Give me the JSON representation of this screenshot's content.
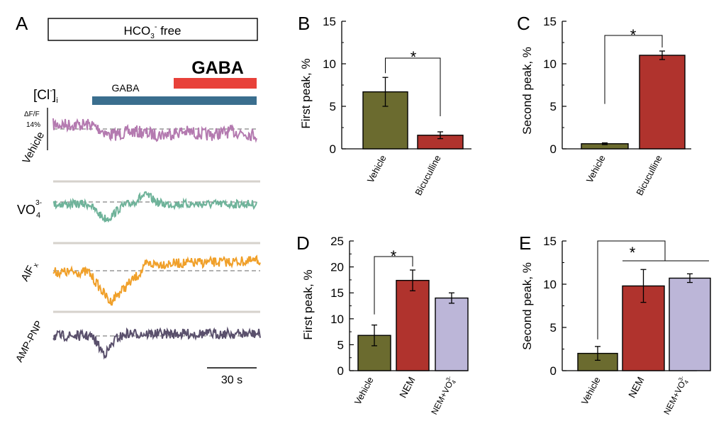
{
  "colors": {
    "vehicle": "#6b6b2f",
    "treated": "#b0332d",
    "nem_vo4": "#bcb6d8",
    "trace_vehicle": "#b47ab0",
    "trace_vo4": "#6fb39a",
    "trace_alf": "#f0a02a",
    "trace_amppnp": "#5a506c",
    "gaba_bar_blue": "#3a6e8e",
    "gaba_bar_red": "#e8413a",
    "separator": "#d6d2cc"
  },
  "panel_a": {
    "label": "A",
    "condition_box": {
      "main": "HCO",
      "sub": "3",
      "sup": "-",
      "rest": " free"
    },
    "gaba_large": "GABA",
    "gaba_small": "GABA",
    "cl_label": {
      "main": "[Cl",
      "sup": "-",
      "close": "]",
      "sub": "i"
    },
    "scale_label_line1": "ΔF/F",
    "scale_label_line2": "14%",
    "traces": [
      {
        "label": "Vehicle"
      },
      {
        "label": "VO",
        "sub": "4",
        "sup": "3-"
      },
      {
        "label": "AlF",
        "sub": "x"
      },
      {
        "label": "AMP-PNP"
      }
    ],
    "time_scale": "30 s"
  },
  "chart_data": [
    {
      "panel": "B",
      "type": "bar",
      "categories": [
        "Vehicle",
        "Bicuculline"
      ],
      "values": [
        6.7,
        1.6
      ],
      "errors": [
        1.7,
        0.4
      ],
      "ylabel": "First peak, %",
      "ylim": [
        0,
        15
      ],
      "yticks": [
        "0",
        "5",
        "10",
        "15"
      ],
      "significance": [
        {
          "from": 0,
          "to": 1,
          "label": "*"
        }
      ]
    },
    {
      "panel": "C",
      "type": "bar",
      "categories": [
        "Vehicle",
        "Bicuculline"
      ],
      "values": [
        0.6,
        11.0
      ],
      "errors": [
        0.1,
        0.5
      ],
      "ylabel": "Second peak, %",
      "ylim": [
        0,
        15
      ],
      "yticks": [
        "0",
        "5",
        "10",
        "15"
      ],
      "significance": [
        {
          "from": 0,
          "to": 1,
          "label": "*"
        }
      ]
    },
    {
      "panel": "D",
      "type": "bar",
      "categories": [
        "Vehicle",
        "NEM",
        "NEM+VO4 3-"
      ],
      "values": [
        6.8,
        17.4,
        14.0
      ],
      "errors": [
        2.0,
        2.0,
        1.0
      ],
      "ylabel": "First peak, %",
      "ylim": [
        0,
        25
      ],
      "yticks": [
        "0",
        "5",
        "10",
        "15",
        "20",
        "25"
      ],
      "significance": [
        {
          "from": 0,
          "to": 1,
          "label": "*"
        }
      ]
    },
    {
      "panel": "E",
      "type": "bar",
      "categories": [
        "Vehicle",
        "NEM",
        "NEM+VO4 3-"
      ],
      "values": [
        2.0,
        9.8,
        10.7
      ],
      "errors": [
        0.8,
        1.9,
        0.5
      ],
      "ylabel": "Second peak, %",
      "ylim": [
        0,
        15
      ],
      "yticks": [
        "0",
        "5",
        "10",
        "15"
      ],
      "significance": [
        {
          "from": 0,
          "to": "1-2",
          "label": "*"
        }
      ]
    }
  ]
}
